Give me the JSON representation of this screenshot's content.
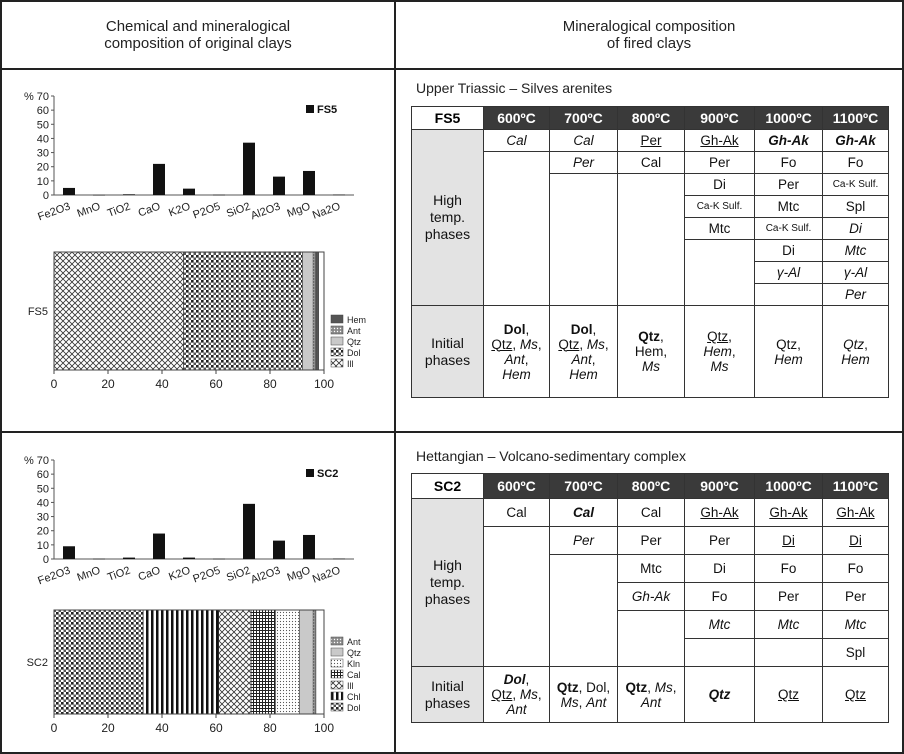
{
  "headers": {
    "left_line1": "Chemical and mineralogical",
    "left_line2": "composition of original clays",
    "right_line1": "Mineralogical composition",
    "right_line2": "of fired clays"
  },
  "colors": {
    "header_cell": "#3a3a3a",
    "grey_cell": "#e3e3e3",
    "bar": "#111111"
  },
  "chart_data": [
    {
      "type": "bar",
      "title": "",
      "legend": "FS5",
      "ylabel_prefix": "%",
      "ylim": [
        0,
        70
      ],
      "yticks": [
        0,
        10,
        20,
        30,
        40,
        50,
        60,
        70
      ],
      "categories": [
        "Fe2O3",
        "MnO",
        "TiO2",
        "CaO",
        "K2O",
        "P2O5",
        "SiO2",
        "Al2O3",
        "MgO",
        "Na2O"
      ],
      "values": [
        5,
        0.1,
        0.5,
        22,
        4.5,
        0.2,
        37,
        13,
        17,
        0.3
      ]
    },
    {
      "type": "stacked-bar",
      "label": "FS5",
      "xlim": [
        0,
        100
      ],
      "xticks": [
        0,
        20,
        40,
        60,
        80,
        100
      ],
      "segments": [
        {
          "name": "Ill",
          "value": 48
        },
        {
          "name": "Dol",
          "value": 44
        },
        {
          "name": "Qtz",
          "value": 4
        },
        {
          "name": "Ant",
          "value": 1
        },
        {
          "name": "Hem",
          "value": 1
        }
      ],
      "legend_order": [
        "Hem",
        "Ant",
        "Qtz",
        "Dol",
        "Ill"
      ]
    },
    {
      "type": "bar",
      "title": "",
      "legend": "SC2",
      "ylabel_prefix": "%",
      "ylim": [
        0,
        70
      ],
      "yticks": [
        0,
        10,
        20,
        30,
        40,
        50,
        60,
        70
      ],
      "categories": [
        "Fe2O3",
        "MnO",
        "TiO2",
        "CaO",
        "K2O",
        "P2O5",
        "SiO2",
        "Al2O3",
        "MgO",
        "Na2O"
      ],
      "values": [
        9,
        0.2,
        1,
        18,
        1,
        0.2,
        39,
        13,
        17,
        0.3
      ]
    },
    {
      "type": "stacked-bar",
      "label": "SC2",
      "xlim": [
        0,
        100
      ],
      "xticks": [
        0,
        20,
        40,
        60,
        80,
        100
      ],
      "segments": [
        {
          "name": "Dol",
          "value": 33
        },
        {
          "name": "Chl",
          "value": 28
        },
        {
          "name": "Ill",
          "value": 12
        },
        {
          "name": "Cal",
          "value": 9
        },
        {
          "name": "Kln",
          "value": 9
        },
        {
          "name": "Qtz",
          "value": 5
        },
        {
          "name": "Ant",
          "value": 1
        }
      ],
      "legend_order": [
        "Ant",
        "Qtz",
        "Kln",
        "Cal",
        "Ill",
        "Chl",
        "Dol"
      ]
    }
  ],
  "tables": [
    {
      "subtitle": "Upper Triassic – Silves arenites",
      "sample": "FS5",
      "temps": [
        "600ºC",
        "700ºC",
        "800ºC",
        "900ºC",
        "1000ºC",
        "1100ºC"
      ],
      "high_label": [
        "High",
        "temp.",
        "phases"
      ],
      "initial_label": [
        "Initial",
        "phases"
      ],
      "high": [
        [
          {
            "t": "Cal",
            "s": "i"
          }
        ],
        [
          {
            "t": "Cal",
            "s": "i"
          },
          {
            "t": "Per",
            "s": "i"
          }
        ],
        [
          {
            "t": "Per",
            "s": "u"
          },
          {
            "t": "Cal",
            "s": ""
          }
        ],
        [
          {
            "t": "Gh-Ak",
            "s": "u"
          },
          {
            "t": "Per",
            "s": ""
          },
          {
            "t": "Di",
            "s": ""
          },
          {
            "t": "Ca-K Sulf.",
            "s": "sm"
          },
          {
            "t": "Mtc",
            "s": ""
          }
        ],
        [
          {
            "t": "Gh-Ak",
            "s": "bi"
          },
          {
            "t": "Fo",
            "s": ""
          },
          {
            "t": "Per",
            "s": ""
          },
          {
            "t": "Mtc",
            "s": ""
          },
          {
            "t": "Ca-K Sulf.",
            "s": "sm"
          },
          {
            "t": "Di",
            "s": ""
          },
          {
            "t": "γ-Al",
            "s": "i"
          }
        ],
        [
          {
            "t": "Gh-Ak",
            "s": "bi"
          },
          {
            "t": "Fo",
            "s": ""
          },
          {
            "t": "Ca-K Sulf.",
            "s": "sm"
          },
          {
            "t": "Spl",
            "s": ""
          },
          {
            "t": "Di",
            "s": "i"
          },
          {
            "t": "Mtc",
            "s": "i"
          },
          {
            "t": "γ-Al",
            "s": "i"
          },
          {
            "t": "Per",
            "s": "i"
          }
        ]
      ],
      "initial": [
        [
          [
            {
              "t": "Dol",
              "s": "b"
            },
            {
              "t": ",",
              "s": ""
            }
          ],
          [
            {
              "t": "Qtz",
              "s": "u"
            },
            {
              "t": ", ",
              "s": ""
            },
            {
              "t": "Ms",
              "s": "i"
            },
            {
              "t": ",",
              "s": ""
            }
          ],
          [
            {
              "t": "Ant",
              "s": "i"
            },
            {
              "t": ",",
              "s": ""
            }
          ],
          [
            {
              "t": "Hem",
              "s": "i"
            }
          ]
        ],
        [
          [
            {
              "t": "Dol",
              "s": "b"
            },
            {
              "t": ",",
              "s": ""
            }
          ],
          [
            {
              "t": "Qtz",
              "s": "u"
            },
            {
              "t": ", ",
              "s": ""
            },
            {
              "t": "Ms",
              "s": "i"
            },
            {
              "t": ",",
              "s": ""
            }
          ],
          [
            {
              "t": "Ant",
              "s": "i"
            },
            {
              "t": ",",
              "s": ""
            }
          ],
          [
            {
              "t": "Hem",
              "s": "i"
            }
          ]
        ],
        [
          [
            {
              "t": "Qtz",
              "s": "b"
            },
            {
              "t": ",",
              "s": ""
            }
          ],
          [
            {
              "t": "Hem",
              "s": ""
            },
            {
              "t": ",",
              "s": ""
            }
          ],
          [
            {
              "t": "Ms",
              "s": "i"
            }
          ]
        ],
        [
          [
            {
              "t": "Qtz",
              "s": "u"
            },
            {
              "t": ",",
              "s": ""
            }
          ],
          [
            {
              "t": "Hem",
              "s": "i"
            },
            {
              "t": ",",
              "s": ""
            }
          ],
          [
            {
              "t": "Ms",
              "s": "i"
            }
          ]
        ],
        [
          [
            {
              "t": "Qtz",
              "s": ""
            },
            {
              "t": ",",
              "s": ""
            }
          ],
          [
            {
              "t": "Hem",
              "s": "i"
            }
          ]
        ],
        [
          [
            {
              "t": "Qtz",
              "s": "i"
            },
            {
              "t": ",",
              "s": ""
            }
          ],
          [
            {
              "t": "Hem",
              "s": "i"
            }
          ]
        ]
      ]
    },
    {
      "subtitle": "Hettangian – Volcano-sedimentary complex",
      "sample": "SC2",
      "temps": [
        "600ºC",
        "700ºC",
        "800ºC",
        "900ºC",
        "1000ºC",
        "1100ºC"
      ],
      "high_label": [
        "High",
        "temp.",
        "phases"
      ],
      "initial_label": [
        "Initial",
        "phases"
      ],
      "high": [
        [
          {
            "t": "Cal",
            "s": ""
          }
        ],
        [
          {
            "t": "Cal",
            "s": "bi"
          },
          {
            "t": "Per",
            "s": "i"
          }
        ],
        [
          {
            "t": "Cal",
            "s": ""
          },
          {
            "t": "Per",
            "s": ""
          },
          {
            "t": "Mtc",
            "s": ""
          },
          {
            "t": "Gh-Ak",
            "s": "i"
          }
        ],
        [
          {
            "t": "Gh-Ak",
            "s": "u"
          },
          {
            "t": "Per",
            "s": ""
          },
          {
            "t": "Di",
            "s": ""
          },
          {
            "t": "Fo",
            "s": ""
          },
          {
            "t": "Mtc",
            "s": "i"
          }
        ],
        [
          {
            "t": "Gh-Ak",
            "s": "u"
          },
          {
            "t": "Di",
            "s": "u"
          },
          {
            "t": "Fo",
            "s": ""
          },
          {
            "t": "Per",
            "s": ""
          },
          {
            "t": "Mtc",
            "s": "i"
          }
        ],
        [
          {
            "t": "Gh-Ak",
            "s": "u"
          },
          {
            "t": "Di",
            "s": "u"
          },
          {
            "t": "Fo",
            "s": ""
          },
          {
            "t": "Per",
            "s": ""
          },
          {
            "t": "Mtc",
            "s": "i"
          },
          {
            "t": "Spl",
            "s": ""
          }
        ]
      ],
      "initial": [
        [
          [
            {
              "t": "Dol",
              "s": "bi"
            },
            {
              "t": ",",
              "s": ""
            }
          ],
          [
            {
              "t": "Qtz",
              "s": "u"
            },
            {
              "t": ", ",
              "s": ""
            },
            {
              "t": "Ms",
              "s": "i"
            },
            {
              "t": ",",
              "s": ""
            }
          ],
          [
            {
              "t": "Ant",
              "s": "i"
            }
          ]
        ],
        [
          [
            {
              "t": "Qtz",
              "s": "b"
            },
            {
              "t": ", Dol,",
              "s": ""
            }
          ],
          [
            {
              "t": "Ms",
              "s": "i"
            },
            {
              "t": ", ",
              "s": ""
            },
            {
              "t": "Ant",
              "s": "i"
            }
          ]
        ],
        [
          [
            {
              "t": "Qtz",
              "s": "b"
            },
            {
              "t": ", ",
              "s": ""
            },
            {
              "t": "Ms",
              "s": "i"
            },
            {
              "t": ",",
              "s": ""
            }
          ],
          [
            {
              "t": "Ant",
              "s": "i"
            }
          ]
        ],
        [
          [
            {
              "t": "Qtz",
              "s": "bi"
            }
          ]
        ],
        [
          [
            {
              "t": "Qtz",
              "s": "u"
            }
          ]
        ],
        [
          [
            {
              "t": "Qtz",
              "s": "u"
            }
          ]
        ]
      ]
    }
  ]
}
